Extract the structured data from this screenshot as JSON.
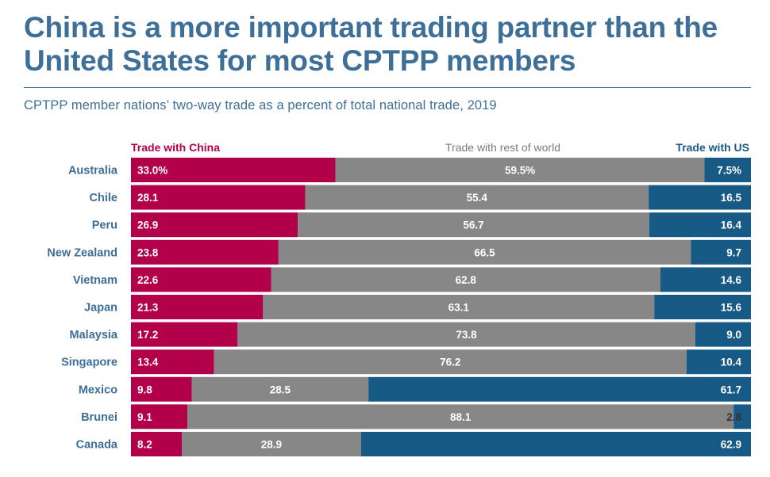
{
  "title": "China is a more important trading partner than the United States for most CPTPP members",
  "subtitle": "CPTPP member nations’ two-way trade as a percent of total national trade, 2019",
  "colors": {
    "china": "#b3004b",
    "rest": "#878787",
    "us": "#175a86",
    "title": "#3d6f98"
  },
  "chart_data": {
    "type": "bar",
    "orientation": "horizontal",
    "stacked": true,
    "normalized_percent": true,
    "title": "China is a more important trading partner than the United States for most CPTPP members",
    "subtitle": "CPTPP member nations’ two-way trade as a percent of total national trade, 2019",
    "xlim": [
      0,
      100
    ],
    "categories": [
      "Australia",
      "Chile",
      "Peru",
      "New Zealand",
      "Vietnam",
      "Japan",
      "Malaysia",
      "Singapore",
      "Mexico",
      "Brunei",
      "Canada"
    ],
    "series": [
      {
        "name": "Trade with China",
        "values": [
          33.0,
          28.1,
          26.9,
          23.8,
          22.6,
          21.3,
          17.2,
          13.4,
          9.8,
          9.1,
          8.2
        ],
        "labels": [
          "33.0%",
          "28.1",
          "26.9",
          "23.8",
          "22.6",
          "21.3",
          "17.2",
          "13.4",
          "9.8",
          "9.1",
          "8.2"
        ]
      },
      {
        "name": "Trade with rest of world",
        "values": [
          59.5,
          55.4,
          56.7,
          66.5,
          62.8,
          63.1,
          73.8,
          76.2,
          28.5,
          88.1,
          28.9
        ],
        "labels": [
          "59.5%",
          "55.4",
          "56.7",
          "66.5",
          "62.8",
          "63.1",
          "73.8",
          "76.2",
          "28.5",
          "88.1",
          "28.9"
        ]
      },
      {
        "name": "Trade with US",
        "values": [
          7.5,
          16.5,
          16.4,
          9.7,
          14.6,
          15.6,
          9.0,
          10.4,
          61.7,
          2.8,
          62.9
        ],
        "labels": [
          "7.5%",
          "16.5",
          "16.4",
          "9.7",
          "14.6",
          "15.6",
          "9.0",
          "10.4",
          "61.7",
          "2.8",
          "62.9"
        ]
      }
    ]
  }
}
